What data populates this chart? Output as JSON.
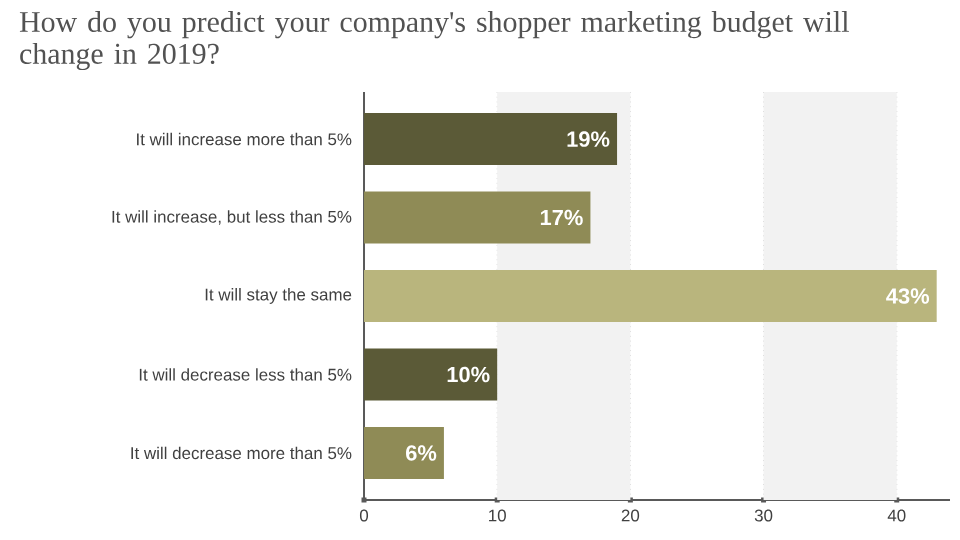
{
  "chart_data": {
    "type": "bar",
    "orientation": "horizontal",
    "title": "How do you predict your company's shopper marketing budget will change in 2019?",
    "categories": [
      "It will increase more than 5%",
      "It will increase, but less than 5%",
      "It will stay the same",
      "It will decrease less than 5%",
      "It will decrease more than 5%"
    ],
    "values": [
      19,
      17,
      43,
      10,
      6
    ],
    "value_labels": [
      "19%",
      "17%",
      "43%",
      "10%",
      "6%"
    ],
    "colors": [
      "#5b5a37",
      "#8f8b56",
      "#b9b57d",
      "#5b5a37",
      "#8f8b56"
    ],
    "xlim": [
      0,
      44
    ],
    "xticks": [
      0,
      10,
      20,
      30,
      40
    ],
    "grid": "x",
    "bands": [
      {
        "axis": "x",
        "from": 10,
        "to": 20,
        "color": "#f2f2f2"
      },
      {
        "axis": "x",
        "from": 30,
        "to": 40,
        "color": "#f2f2f2"
      }
    ]
  }
}
